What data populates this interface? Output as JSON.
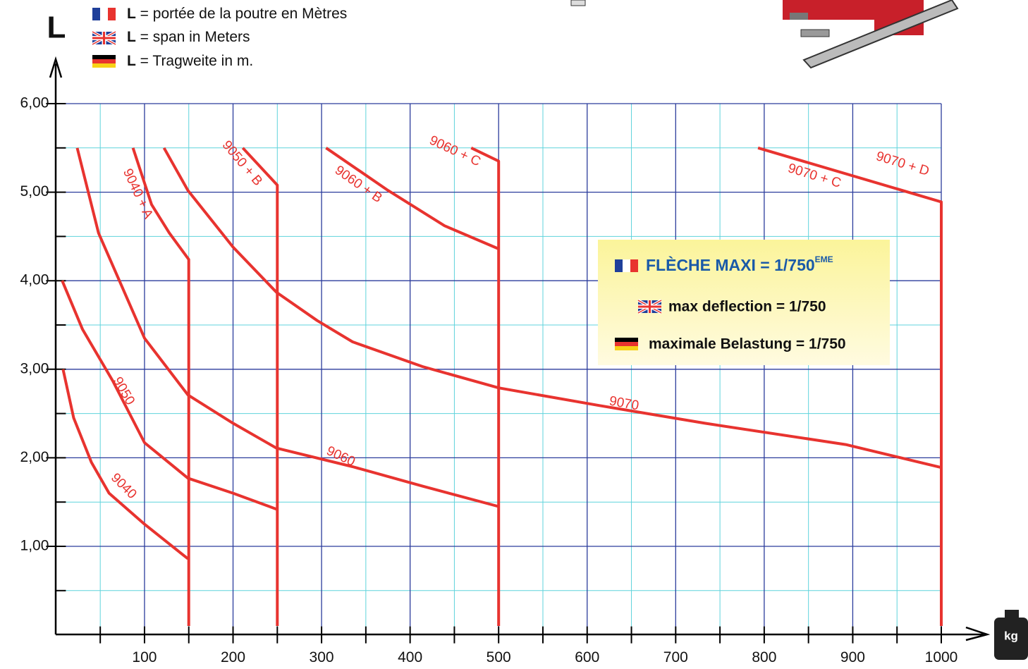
{
  "chart_data": {
    "type": "line",
    "y_axis_label": "L",
    "x_axis_label": "kg",
    "legend_notes": [
      {
        "symbol": "L",
        "text": "= portée de la poutre en Mètres"
      },
      {
        "symbol": "L",
        "text": "= span in Meters"
      },
      {
        "symbol": "L",
        "text": "= Tragweite in m."
      }
    ],
    "info_box": [
      {
        "text": "FLÈCHE MAXI = 1/750",
        "sup": "EME"
      },
      {
        "text": "max deflection = 1/750"
      },
      {
        "text": "maximale Belastung = 1/750"
      }
    ],
    "annotations": [
      "9070 + D"
    ],
    "xlim": [
      0,
      1000
    ],
    "ylim": [
      0,
      6
    ],
    "xticks": [
      100,
      200,
      300,
      400,
      500,
      600,
      700,
      800,
      900,
      1000
    ],
    "xminorticks": [
      50,
      150,
      250,
      350,
      450,
      550,
      650,
      750,
      850,
      950
    ],
    "yticks": [
      {
        "value": 1,
        "label": "1,00"
      },
      {
        "value": 2,
        "label": "2,00"
      },
      {
        "value": 3,
        "label": "3,00"
      },
      {
        "value": 4,
        "label": "4,00"
      },
      {
        "value": 5,
        "label": "5,00"
      },
      {
        "value": 6,
        "label": "6,00"
      }
    ],
    "yminorticks": [
      0.5,
      1.5,
      2.5,
      3.5,
      4.5,
      5.5
    ],
    "grid": true,
    "series": [
      {
        "name": "9040",
        "color": "#e8332f",
        "x": [
          8,
          20,
          40,
          60,
          100,
          149
        ],
        "values": [
          3.0,
          2.45,
          1.95,
          1.6,
          1.25,
          0.86
        ]
      },
      {
        "name": "9050",
        "color": "#e8332f",
        "x": [
          7,
          30,
          64,
          100,
          149,
          200,
          249
        ],
        "values": [
          4.0,
          3.45,
          2.87,
          2.17,
          1.77,
          1.6,
          1.42
        ]
      },
      {
        "name": "9060",
        "color": "#e8332f",
        "x": [
          24,
          48,
          100,
          149,
          200,
          249,
          335,
          414,
          500
        ],
        "values": [
          5.5,
          4.54,
          3.35,
          2.71,
          2.39,
          2.11,
          1.9,
          1.68,
          1.45
        ]
      },
      {
        "name": "9070",
        "color": "#e8332f",
        "x": [
          122,
          149,
          200,
          249,
          295,
          335,
          414,
          500,
          614,
          733,
          892,
          1000
        ],
        "values": [
          5.5,
          5.02,
          4.38,
          3.87,
          3.55,
          3.31,
          3.03,
          2.79,
          2.59,
          2.39,
          2.15,
          1.89
        ]
      },
      {
        "name": "9040 + A",
        "color": "#e8332f",
        "x": [
          87,
          108,
          128,
          150,
          150
        ],
        "values": [
          5.5,
          4.86,
          4.54,
          4.24,
          0.1
        ]
      },
      {
        "name": "9050 + B",
        "color": "#e8332f",
        "x": [
          211,
          250,
          250
        ],
        "values": [
          5.5,
          5.08,
          0.1
        ]
      },
      {
        "name": "9060 + B",
        "color": "#e8332f",
        "x": [
          305,
          375,
          439,
          500
        ],
        "values": [
          5.5,
          5.02,
          4.62,
          4.36
        ]
      },
      {
        "name": "9060 + C",
        "color": "#e8332f",
        "x": [
          469,
          500,
          500
        ],
        "values": [
          5.5,
          5.35,
          0.1
        ]
      },
      {
        "name": "9070 + C",
        "color": "#e8332f",
        "x": [
          793,
          1000,
          1000
        ],
        "values": [
          5.5,
          4.89,
          0.1
        ]
      }
    ]
  }
}
